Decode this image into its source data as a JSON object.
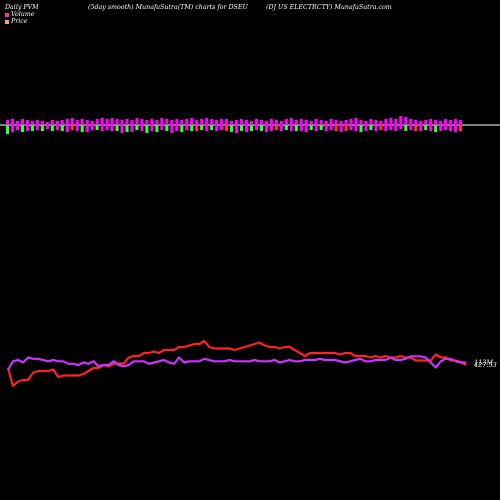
{
  "header": {
    "left": "Daily PVM",
    "center": "(5day smooth) MunafaSutra(TM) charts for DSEU",
    "right": "(DJ US ELECTRCTY) MunafaSutra.com"
  },
  "legend": {
    "volume_label": "Volume",
    "price_label": "Price",
    "volume_color": "#ff3399",
    "price_color": "#ff9966"
  },
  "colors": {
    "background": "#000000",
    "volume_up": "#ff00ff",
    "volume_down": "#33ff33",
    "volume_neutral": "#ff3333",
    "volume_line": "#cc33ff",
    "price_line": "#ff2222",
    "baseline": "#ffffff"
  },
  "chart_data": [
    {
      "type": "bar",
      "title": "",
      "grid": false,
      "categories": [
        1,
        2,
        3,
        4,
        5,
        6,
        7,
        8,
        9,
        10,
        11,
        12,
        13,
        14,
        15,
        16,
        17,
        18,
        19,
        20,
        21,
        22,
        23,
        24,
        25,
        26,
        27,
        28,
        29,
        30,
        31,
        32,
        33,
        34,
        35,
        36,
        37,
        38,
        39,
        40,
        41,
        42,
        43,
        44,
        45,
        46,
        47,
        48,
        49,
        50,
        51,
        52,
        53,
        54,
        55,
        56,
        57,
        58,
        59,
        60,
        61,
        62,
        63,
        64,
        65,
        66,
        67,
        68,
        69,
        70,
        71,
        72,
        73,
        74,
        75,
        76,
        77,
        78,
        79,
        80,
        81,
        82,
        83,
        84,
        85,
        86,
        87,
        88,
        89,
        90,
        91,
        92
      ],
      "values": [
        [
          5,
          -9
        ],
        [
          6,
          -7
        ],
        [
          4,
          -5
        ],
        [
          6,
          -7
        ],
        [
          5,
          -6
        ],
        [
          4,
          -6
        ],
        [
          5,
          -5
        ],
        [
          4,
          -6
        ],
        [
          3,
          -4
        ],
        [
          5,
          -6
        ],
        [
          4,
          -5
        ],
        [
          5,
          -6
        ],
        [
          6,
          -7
        ],
        [
          7,
          -5
        ],
        [
          5,
          -6
        ],
        [
          6,
          -7
        ],
        [
          5,
          -7
        ],
        [
          4,
          -5
        ],
        [
          6,
          -5
        ],
        [
          7,
          -6
        ],
        [
          6,
          -5
        ],
        [
          7,
          -6
        ],
        [
          6,
          -6
        ],
        [
          5,
          -8
        ],
        [
          6,
          -7
        ],
        [
          5,
          -7
        ],
        [
          7,
          -5
        ],
        [
          6,
          -6
        ],
        [
          5,
          -8
        ],
        [
          6,
          -6
        ],
        [
          5,
          -7
        ],
        [
          7,
          -5
        ],
        [
          6,
          -6
        ],
        [
          5,
          -8
        ],
        [
          6,
          -6
        ],
        [
          5,
          -7
        ],
        [
          6,
          -5
        ],
        [
          7,
          -6
        ],
        [
          5,
          -6
        ],
        [
          6,
          -5
        ],
        [
          7,
          -6
        ],
        [
          6,
          -5
        ],
        [
          5,
          -6
        ],
        [
          6,
          -5
        ],
        [
          6,
          -6
        ],
        [
          4,
          -7
        ],
        [
          5,
          -8
        ],
        [
          6,
          -6
        ],
        [
          5,
          -7
        ],
        [
          4,
          -6
        ],
        [
          6,
          -5
        ],
        [
          5,
          -6
        ],
        [
          4,
          -7
        ],
        [
          6,
          -6
        ],
        [
          5,
          -5
        ],
        [
          4,
          -6
        ],
        [
          6,
          -5
        ],
        [
          7,
          -6
        ],
        [
          5,
          -6
        ],
        [
          6,
          -6
        ],
        [
          5,
          -7
        ],
        [
          4,
          -5
        ],
        [
          6,
          -6
        ],
        [
          5,
          -5
        ],
        [
          4,
          -6
        ],
        [
          6,
          -5
        ],
        [
          5,
          -6
        ],
        [
          4,
          -7
        ],
        [
          5,
          -6
        ],
        [
          6,
          -5
        ],
        [
          7,
          -6
        ],
        [
          5,
          -7
        ],
        [
          4,
          -6
        ],
        [
          6,
          -5
        ],
        [
          5,
          -6
        ],
        [
          4,
          -5
        ],
        [
          6,
          -6
        ],
        [
          7,
          -5
        ],
        [
          6,
          -6
        ],
        [
          9,
          -4
        ],
        [
          8,
          -6
        ],
        [
          6,
          -5
        ],
        [
          5,
          -6
        ],
        [
          4,
          -6
        ],
        [
          5,
          -5
        ],
        [
          6,
          -6
        ],
        [
          5,
          -7
        ],
        [
          4,
          -6
        ],
        [
          6,
          -5
        ],
        [
          5,
          -6
        ],
        [
          6,
          -7
        ],
        [
          5,
          -6
        ]
      ],
      "bar_colors": [
        "down",
        "up",
        "up",
        "down",
        "up",
        "down",
        "up",
        "down",
        "up",
        "down",
        "up",
        "down",
        "up",
        "neutral",
        "up",
        "down",
        "up",
        "up",
        "down",
        "up",
        "up",
        "up",
        "down",
        "up",
        "down",
        "up",
        "down",
        "up",
        "down",
        "up",
        "down",
        "up",
        "down",
        "up",
        "up",
        "down",
        "up",
        "down",
        "neutral",
        "down",
        "up",
        "down",
        "up",
        "up",
        "neutral",
        "down",
        "up",
        "down",
        "up",
        "down",
        "up",
        "down",
        "up",
        "up",
        "neutral",
        "up",
        "down",
        "up",
        "down",
        "up",
        "up",
        "down",
        "up",
        "down",
        "up",
        "up",
        "neutral",
        "up",
        "neutral",
        "up",
        "up",
        "down",
        "up",
        "down",
        "up",
        "neutral",
        "up",
        "up",
        "up",
        "up",
        "down",
        "up",
        "neutral",
        "up",
        "down",
        "up",
        "down",
        "up",
        "up",
        "up",
        "up",
        "neutral"
      ]
    },
    {
      "type": "line",
      "title": "",
      "grid": false,
      "x": [
        1,
        2,
        3,
        4,
        5,
        6,
        7,
        8,
        9,
        10,
        11,
        12,
        13,
        14,
        15,
        16,
        17,
        18,
        19,
        20,
        21,
        22,
        23,
        24,
        25,
        26,
        27,
        28,
        29,
        30,
        31,
        32,
        33,
        34,
        35,
        36,
        37,
        38,
        39,
        40,
        41,
        42,
        43,
        44,
        45,
        46,
        47,
        48,
        49,
        50,
        51,
        52,
        53,
        54,
        55,
        56,
        57,
        58,
        59,
        60,
        61,
        62,
        63,
        64,
        65,
        66,
        67,
        68,
        69,
        70,
        71,
        72,
        73,
        74,
        75,
        76,
        77,
        78,
        79,
        80,
        81,
        82,
        83,
        84,
        85,
        86,
        87,
        88,
        89,
        90,
        91,
        92
      ],
      "series": [
        {
          "color": "volume_line",
          "end_label": "113M",
          "values": [
            109,
            116,
            117,
            115,
            119,
            118,
            118,
            117,
            116,
            117,
            116,
            116,
            114,
            114,
            113,
            115,
            114,
            116,
            112,
            113,
            113,
            116,
            113,
            112,
            113,
            116,
            116,
            116,
            114,
            115,
            116,
            117,
            115,
            114,
            119,
            115,
            116,
            116,
            116,
            118,
            117,
            116,
            116,
            116,
            117,
            116,
            116,
            116,
            116,
            117,
            116,
            116,
            116,
            117,
            115,
            116,
            117,
            116,
            116,
            117,
            117,
            117,
            118,
            117,
            117,
            117,
            116,
            115,
            116,
            117,
            118,
            116,
            116,
            117,
            117,
            117,
            119,
            117,
            117,
            118,
            120,
            120,
            120,
            119,
            115,
            111,
            116,
            118,
            118,
            116,
            115,
            115
          ]
        },
        {
          "color": "price_line",
          "end_label": "427.53",
          "values": [
            418,
            406,
            409,
            410,
            410,
            415,
            416,
            416,
            416,
            417,
            412,
            413,
            413,
            413,
            413,
            414,
            416,
            418,
            418,
            420,
            419,
            421,
            421,
            421,
            425,
            426,
            426,
            428,
            428,
            429,
            428,
            430,
            430,
            430,
            432,
            432,
            433,
            434,
            434,
            436,
            432,
            431,
            431,
            431,
            431,
            430,
            431,
            432,
            433,
            434,
            435,
            433,
            432,
            432,
            431,
            432,
            432,
            430,
            428,
            426,
            428,
            428,
            428,
            428,
            428,
            428,
            427,
            428,
            428,
            426,
            426,
            426,
            425,
            426,
            425,
            426,
            425,
            425,
            426,
            425,
            425,
            423,
            423,
            423,
            423,
            427,
            425,
            425,
            423,
            423,
            422,
            420
          ]
        }
      ]
    }
  ]
}
